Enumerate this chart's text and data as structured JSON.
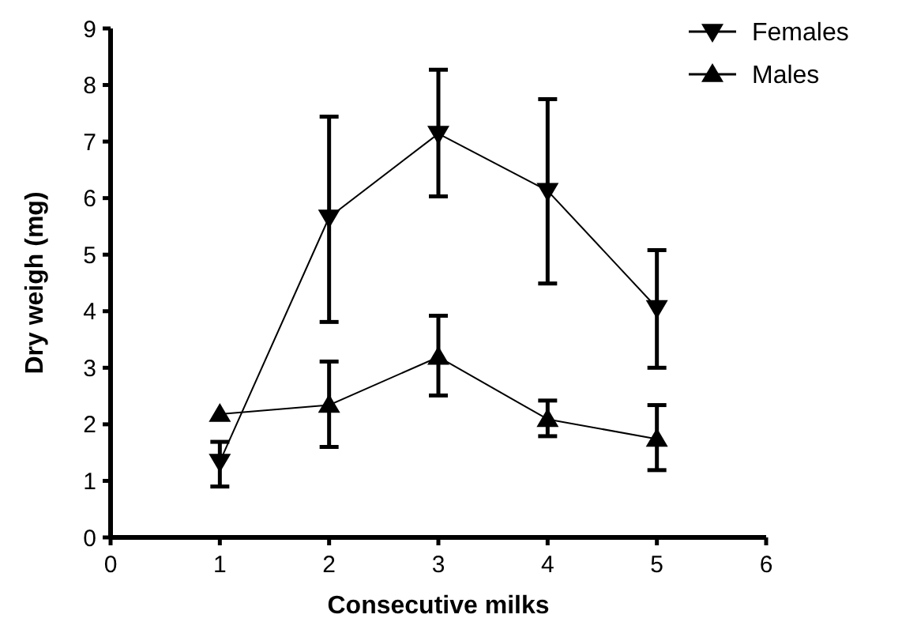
{
  "chart_data": {
    "type": "line",
    "xlabel": "Consecutive milks",
    "ylabel": "Dry weigh (mg)",
    "x": [
      1,
      2,
      3,
      4,
      5
    ],
    "xlim": [
      0,
      6
    ],
    "xticks": [
      0,
      1,
      2,
      3,
      4,
      5,
      6
    ],
    "ylim": [
      0,
      9
    ],
    "yticks": [
      0,
      1,
      2,
      3,
      4,
      5,
      6,
      7,
      8,
      9
    ],
    "grid": false,
    "legend": "top right",
    "series": [
      {
        "name": "Females",
        "color": "#000000",
        "marker": "triangle-down",
        "values": [
          1.34,
          5.66,
          7.14,
          6.13,
          4.06
        ],
        "errors": [
          [
            0.9,
            1.69
          ],
          [
            3.81,
            7.44
          ],
          [
            6.03,
            8.27
          ],
          [
            4.49,
            7.75
          ],
          [
            3.0,
            5.08
          ]
        ]
      },
      {
        "name": "Males",
        "color": "#000000",
        "marker": "triangle",
        "values": [
          2.18,
          2.34,
          3.19,
          2.09,
          1.74
        ],
        "errors": [
          null,
          [
            1.6,
            3.11
          ],
          [
            2.51,
            3.92
          ],
          [
            1.79,
            2.42
          ],
          [
            1.19,
            2.34
          ]
        ]
      }
    ]
  }
}
